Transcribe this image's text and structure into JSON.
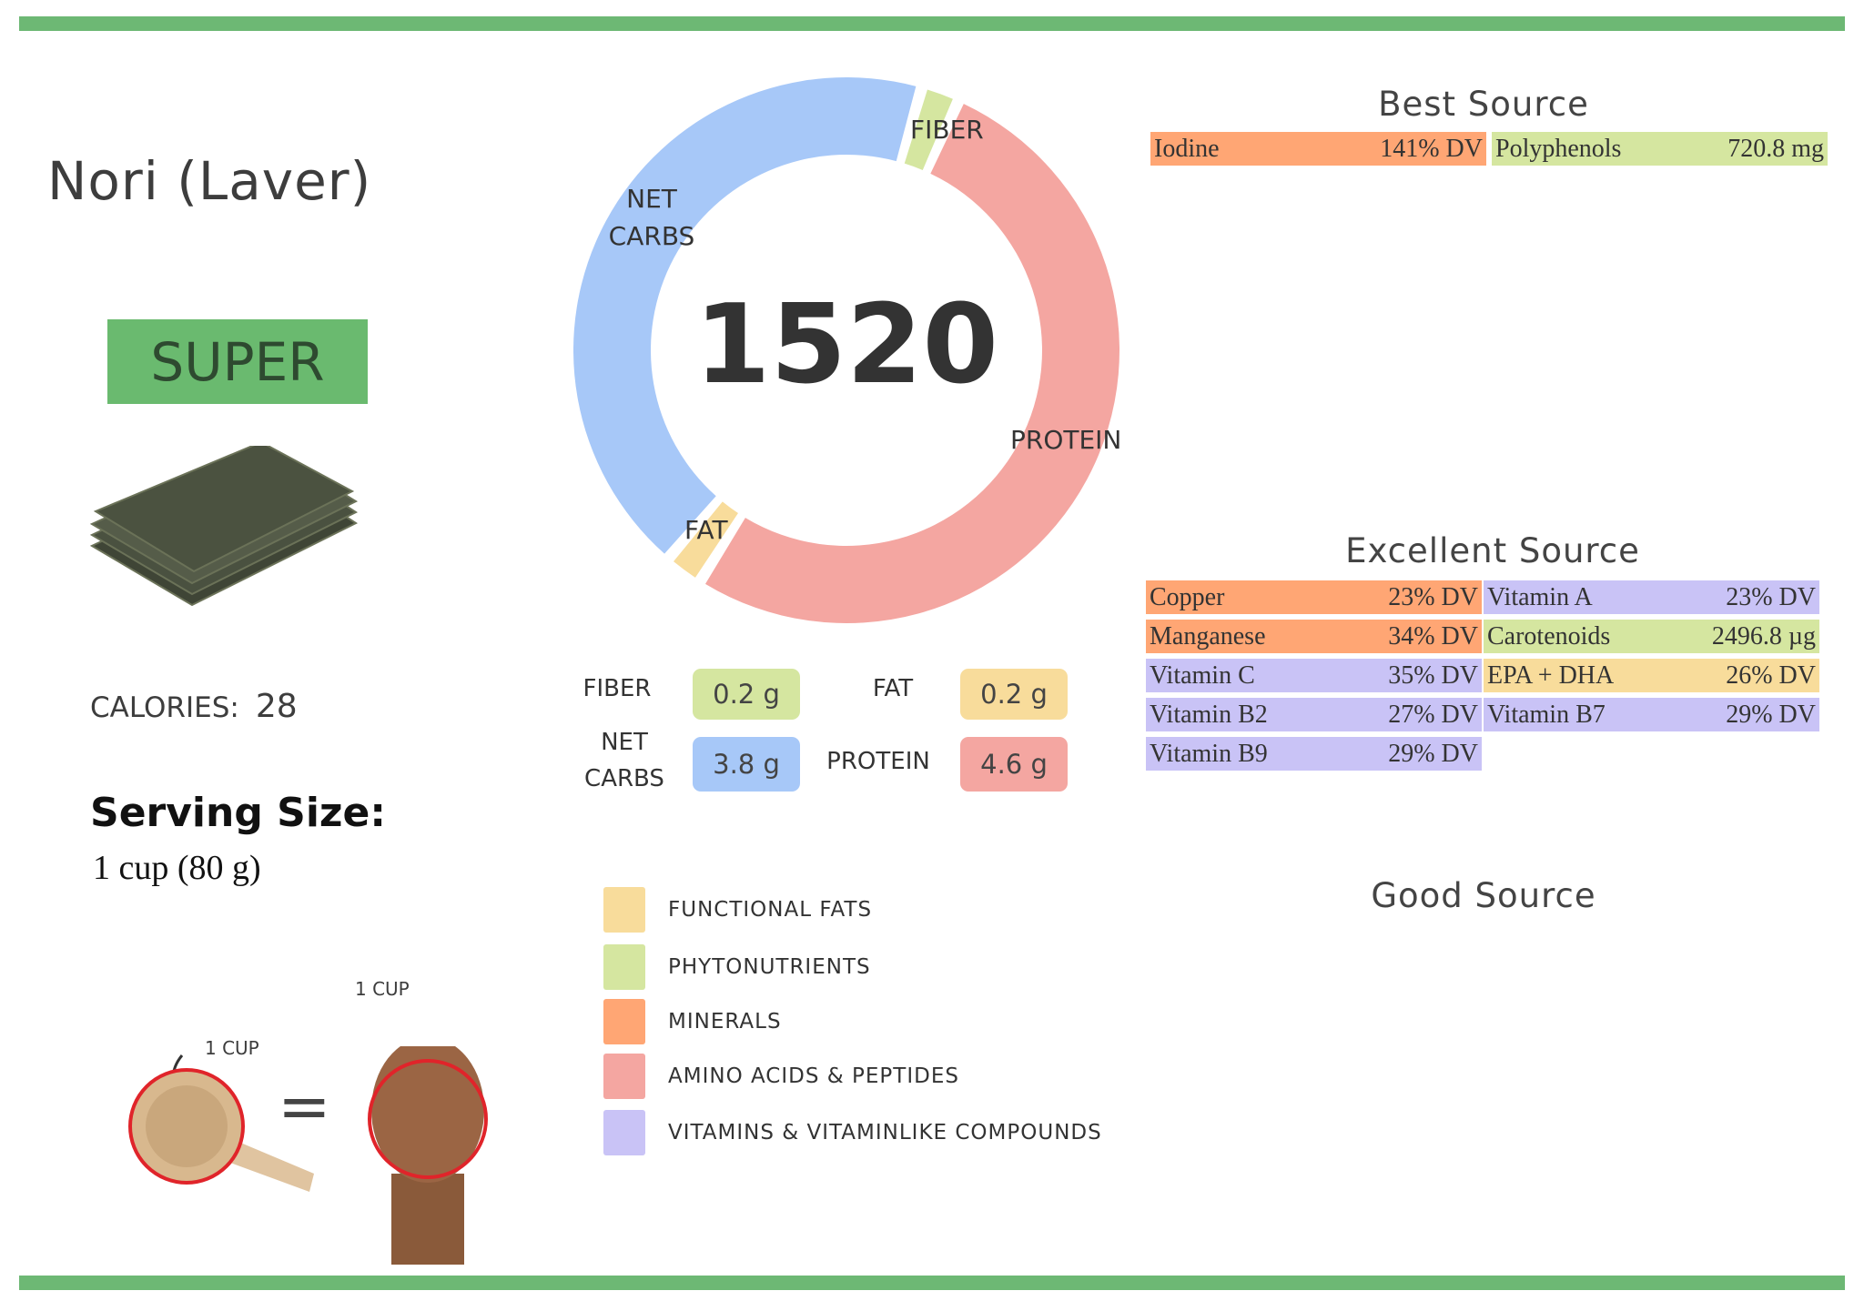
{
  "food": {
    "name": "Nori (Laver)",
    "rating": "SUPER",
    "calories_label": "CALORIES:",
    "calories": "28",
    "serving_label": "Serving Size:",
    "serving_value": "1 cup (80 g)"
  },
  "illustration": {
    "cup_label": "1 CUP",
    "fist_label": "1 CUP",
    "equals": "="
  },
  "donut": {
    "total": "1520",
    "segments": [
      {
        "key": "fiber",
        "label": "FIBER",
        "value": 0.2,
        "color": "#d5e6a0"
      },
      {
        "key": "protein",
        "label": "PROTEIN",
        "value": 4.6,
        "color": "#f4a6a1"
      },
      {
        "key": "fat",
        "label": "FAT",
        "value": 0.2,
        "color": "#f8dc9b"
      },
      {
        "key": "net_carbs",
        "label": "NET CARBS",
        "value": 3.8,
        "color": "#a7c8f8"
      }
    ],
    "labels": {
      "fiber": "FIBER",
      "net": "NET",
      "carbs": "CARBS",
      "protein": "PROTEIN",
      "fat": "FAT"
    }
  },
  "macros": {
    "fiber": {
      "label": "FIBER",
      "value": "0.2 g"
    },
    "fat": {
      "label": "FAT",
      "value": "0.2 g"
    },
    "net_carbs": {
      "label1": "NET",
      "label2": "CARBS",
      "value": "3.8 g"
    },
    "protein": {
      "label": "PROTEIN",
      "value": "4.6 g"
    }
  },
  "legend": [
    {
      "label": "FUNCTIONAL FATS",
      "color": "#f8dc9b"
    },
    {
      "label": "PHYTONUTRIENTS",
      "color": "#d5e6a0"
    },
    {
      "label": "MINERALS",
      "color": "#ffa674"
    },
    {
      "label": "AMINO ACIDS & PEPTIDES",
      "color": "#f4a6a1"
    },
    {
      "label": "VITAMINS & VITAMINLIKE COMPOUNDS",
      "color": "#c9c3f6"
    }
  ],
  "best": {
    "title": "Best Source",
    "items": [
      {
        "name": "Iodine",
        "value": "141% DV",
        "color": "#ffa674"
      },
      {
        "name": "Polyphenols",
        "value": "720.8 mg",
        "color": "#d5e6a0"
      }
    ]
  },
  "excellent": {
    "title": "Excellent Source",
    "items": [
      {
        "name": "Copper",
        "value": "23% DV",
        "color": "#ffa674"
      },
      {
        "name": "Vitamin A",
        "value": "23% DV",
        "color": "#c9c3f6"
      },
      {
        "name": "Manganese",
        "value": "34% DV",
        "color": "#ffa674"
      },
      {
        "name": "Carotenoids",
        "value": "2496.8 µg",
        "color": "#d5e6a0"
      },
      {
        "name": "Vitamin C",
        "value": "35% DV",
        "color": "#c9c3f6"
      },
      {
        "name": "EPA + DHA",
        "value": "26% DV",
        "color": "#f8dc9b"
      },
      {
        "name": "Vitamin B2",
        "value": "27% DV",
        "color": "#c9c3f6"
      },
      {
        "name": "Vitamin B7",
        "value": "29% DV",
        "color": "#c9c3f6"
      },
      {
        "name": "Vitamin B9",
        "value": "29% DV",
        "color": "#c9c3f6"
      }
    ]
  },
  "good": {
    "title": "Good Source"
  }
}
